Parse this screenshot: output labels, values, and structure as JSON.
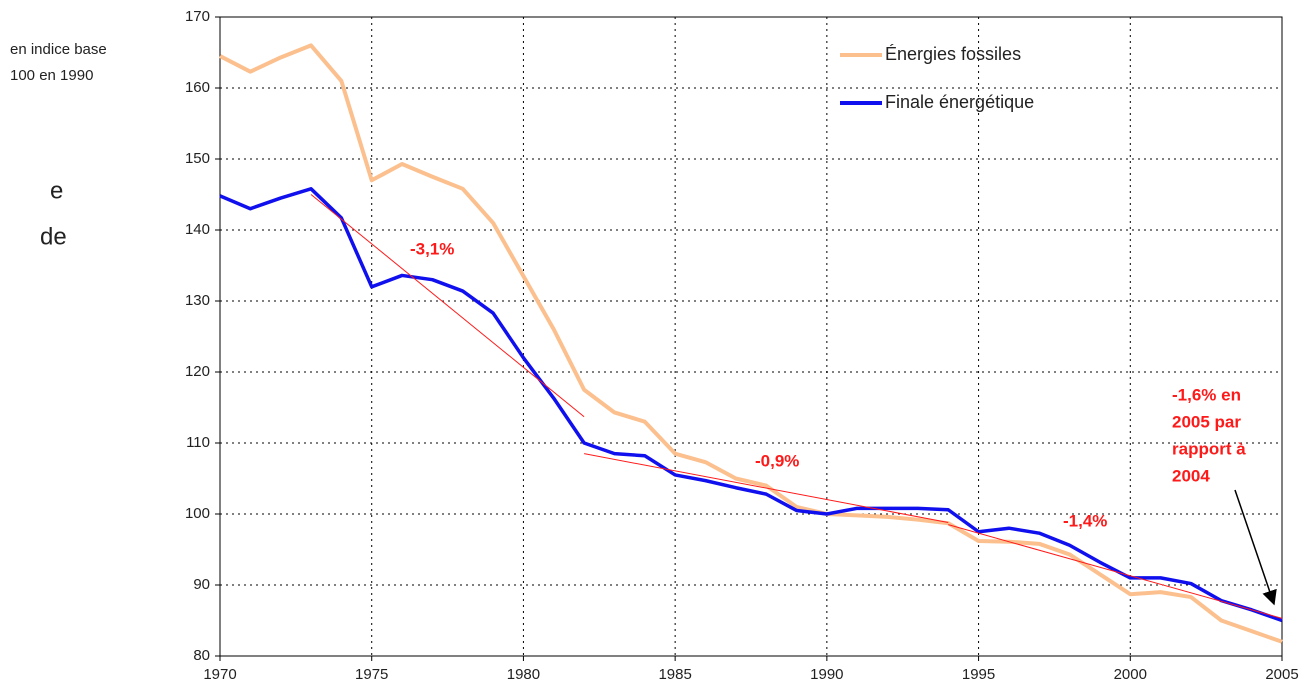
{
  "chart_data": {
    "type": "line",
    "y_label_lines": [
      "en indice base",
      "100 en 1990"
    ],
    "fragments": [
      "e",
      "de"
    ],
    "x": [
      1970,
      1971,
      1972,
      1973,
      1974,
      1975,
      1976,
      1977,
      1978,
      1979,
      1980,
      1981,
      1982,
      1983,
      1984,
      1985,
      1986,
      1987,
      1988,
      1989,
      1990,
      1991,
      1992,
      1993,
      1994,
      1995,
      1996,
      1997,
      1998,
      1999,
      2000,
      2001,
      2002,
      2003,
      2004,
      2005
    ],
    "series": [
      {
        "name": "Énergies fossiles",
        "color": "#fbc08e",
        "values": [
          164.5,
          162.3,
          164.3,
          166,
          161,
          147,
          149.3,
          147.5,
          145.8,
          141,
          133.5,
          126,
          117.5,
          114.3,
          113,
          108.5,
          107.3,
          105,
          104,
          101,
          100,
          99.8,
          99.6,
          99.2,
          98.7,
          96.2,
          96.1,
          95.8,
          94.3,
          91.5,
          88.7,
          89,
          88.3,
          85,
          83.5,
          82
        ]
      },
      {
        "name": "Finale énergétique",
        "color": "#1010ee",
        "values": [
          144.8,
          143,
          144.5,
          145.8,
          141.7,
          132,
          133.6,
          133,
          131.4,
          128.3,
          122,
          116.3,
          110,
          108.5,
          108.2,
          105.5,
          104.7,
          103.7,
          102.8,
          100.5,
          100,
          100.8,
          100.8,
          100.8,
          100.6,
          97.5,
          98,
          97.3,
          95.6,
          93.2,
          91,
          91,
          90.2,
          87.8,
          86.5,
          85
        ]
      }
    ],
    "trend_lines": [
      {
        "x": [
          1973,
          1982
        ],
        "y": [
          145,
          113.7
        ],
        "label": "-3,1%"
      },
      {
        "x": [
          1982,
          1994
        ],
        "y": [
          108.5,
          98.8
        ],
        "label": "-0,9%"
      },
      {
        "x": [
          1994,
          2005
        ],
        "y": [
          98.5,
          85.3
        ],
        "label": "-1,4%"
      }
    ],
    "annotation_lines": [
      "-1,6% en",
      "2005 par",
      "rapport à",
      "2004"
    ],
    "trend_color": "#ff1a1a",
    "xlim": [
      1970,
      2005
    ],
    "xticks": [
      1970,
      1975,
      1980,
      1985,
      1990,
      1995,
      2000,
      2005
    ],
    "ylim": [
      80,
      170
    ],
    "yticks": [
      80,
      90,
      100,
      110,
      120,
      130,
      140,
      150,
      160,
      170
    ],
    "grid": true
  }
}
